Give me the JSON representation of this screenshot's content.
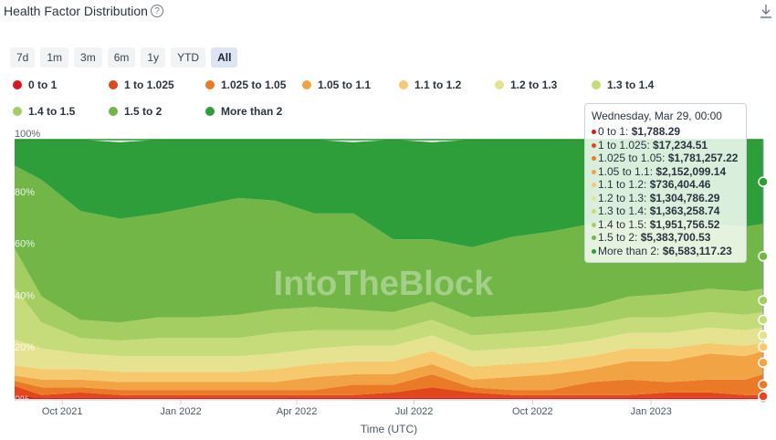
{
  "header": {
    "title": "Health Factor Distribution",
    "help_icon": "question-circle-icon",
    "download_icon": "download-icon"
  },
  "ranges": [
    {
      "label": "7d"
    },
    {
      "label": "1m"
    },
    {
      "label": "3m"
    },
    {
      "label": "6m"
    },
    {
      "label": "1y"
    },
    {
      "label": "YTD"
    },
    {
      "label": "All",
      "active": true
    }
  ],
  "legend": [
    {
      "label": "0 to 1",
      "color": "#d7191c"
    },
    {
      "label": "1 to 1.025",
      "color": "#e2471b"
    },
    {
      "label": "1.025 to 1.05",
      "color": "#eb7a26"
    },
    {
      "label": "1.05 to 1.1",
      "color": "#f2a444"
    },
    {
      "label": "1.1 to 1.2",
      "color": "#f6c96e"
    },
    {
      "label": "1.2 to 1.3",
      "color": "#e5e38f"
    },
    {
      "label": "1.3 to 1.4",
      "color": "#c6dc7b"
    },
    {
      "label": "1.4 to 1.5",
      "color": "#a4cd62"
    },
    {
      "label": "1.5 to 2",
      "color": "#72b648"
    },
    {
      "label": "More than 2",
      "color": "#2e9e3b"
    }
  ],
  "tooltip": {
    "date": "Wednesday, Mar 29, 00:00",
    "rows": [
      {
        "label": "0 to 1:",
        "value": "$1,788.29"
      },
      {
        "label": "1 to 1.025:",
        "value": "$17,234.51"
      },
      {
        "label": "1.025 to 1.05:",
        "value": "$1,781,257.22"
      },
      {
        "label": "1.05 to 1.1:",
        "value": "$2,152,099.14"
      },
      {
        "label": "1.1 to 1.2:",
        "value": "$736,404.46"
      },
      {
        "label": "1.2 to 1.3:",
        "value": "$1,304,786.29"
      },
      {
        "label": "1.3 to 1.4:",
        "value": "$1,363,258.74"
      },
      {
        "label": "1.4 to 1.5:",
        "value": "$1,951,756.52"
      },
      {
        "label": "1.5 to 2:",
        "value": "$5,383,700.53"
      },
      {
        "label": "More than 2:",
        "value": "$6,583,117.23"
      }
    ]
  },
  "watermark": "IntoTheBlock",
  "chart_data": {
    "type": "area",
    "stacked": "percent",
    "xlabel": "Time (UTC)",
    "ylabel": "",
    "ylim": [
      0,
      100
    ],
    "y_ticks": [
      "0%",
      "20%",
      "40%",
      "60%",
      "80%",
      "100%"
    ],
    "x_ticks": [
      {
        "label": "Oct 2021",
        "date": "2021-10-01"
      },
      {
        "label": "Jan 2022",
        "date": "2022-01-01"
      },
      {
        "label": "Apr 2022",
        "date": "2022-04-01"
      },
      {
        "label": "Jul 2022",
        "date": "2022-07-01"
      },
      {
        "label": "Oct 2022",
        "date": "2022-10-01"
      },
      {
        "label": "Jan 2023",
        "date": "2023-01-01"
      }
    ],
    "x": [
      "2021-08-25",
      "2021-09-15",
      "2021-10-15",
      "2021-11-15",
      "2021-12-15",
      "2022-01-15",
      "2022-02-15",
      "2022-03-15",
      "2022-04-15",
      "2022-05-15",
      "2022-06-15",
      "2022-07-15",
      "2022-08-15",
      "2022-09-15",
      "2022-10-15",
      "2022-11-15",
      "2022-12-15",
      "2023-01-15",
      "2023-02-15",
      "2023-03-15",
      "2023-03-29"
    ],
    "series": [
      {
        "name": "0 to 1",
        "values": [
          1,
          0.5,
          0.5,
          0.5,
          0.5,
          0.5,
          0.5,
          0.5,
          0.5,
          0.5,
          0.5,
          0.5,
          0.5,
          0.5,
          0.5,
          0.5,
          0.5,
          0.5,
          0.5,
          0.5,
          0.5
        ]
      },
      {
        "name": "1 to 1.025",
        "values": [
          4,
          1,
          2,
          1,
          1,
          1,
          1,
          1,
          1,
          1,
          2,
          4,
          2,
          1,
          1,
          1,
          1,
          2,
          2,
          1,
          1
        ]
      },
      {
        "name": "1.025 to 1.05",
        "values": [
          2,
          3,
          2,
          2,
          2,
          2,
          2,
          2,
          2,
          4,
          3,
          5,
          2,
          2,
          2,
          5,
          6,
          4,
          5,
          6,
          8
        ]
      },
      {
        "name": "1.05 to 1.1",
        "values": [
          2,
          3,
          3,
          3,
          3,
          3,
          3,
          3,
          5,
          4,
          4,
          4,
          3,
          5,
          6,
          5,
          7,
          8,
          10,
          9,
          9
        ]
      },
      {
        "name": "1.1 to 1.2",
        "values": [
          4,
          4,
          4,
          4,
          4,
          4,
          4,
          5,
          5,
          5,
          5,
          5,
          5,
          5,
          5,
          5,
          5,
          5,
          4,
          4,
          3
        ]
      },
      {
        "name": "1.2 to 1.3",
        "values": [
          10,
          8,
          6,
          6,
          6,
          6,
          6,
          6,
          6,
          6,
          6,
          6,
          6,
          6,
          6,
          6,
          6,
          6,
          6,
          6,
          6
        ]
      },
      {
        "name": "1.3 to 1.4",
        "values": [
          20,
          10,
          6,
          6,
          7,
          7,
          7,
          8,
          7,
          6,
          6,
          6,
          6,
          6,
          6,
          6,
          6,
          6,
          6,
          6,
          6
        ]
      },
      {
        "name": "1.4 to 1.5",
        "values": [
          15,
          10,
          7,
          7,
          8,
          8,
          9,
          9,
          9,
          8,
          7,
          7,
          7,
          7,
          7,
          7,
          8,
          9,
          9,
          9,
          9
        ]
      },
      {
        "name": "1.5 to 2",
        "values": [
          32,
          45,
          42,
          40,
          40,
          43,
          45,
          42,
          36,
          37,
          28,
          24,
          27,
          30,
          31,
          32,
          30,
          29,
          25,
          25,
          25
        ]
      },
      {
        "name": "More than 2",
        "values": [
          10,
          15.5,
          27.5,
          29.5,
          28.5,
          25.5,
          22.5,
          23.5,
          28.5,
          27.5,
          38.5,
          37.5,
          41.5,
          37.5,
          35.5,
          32.5,
          30.5,
          30.5,
          32.5,
          33.5,
          32.5
        ]
      }
    ]
  }
}
